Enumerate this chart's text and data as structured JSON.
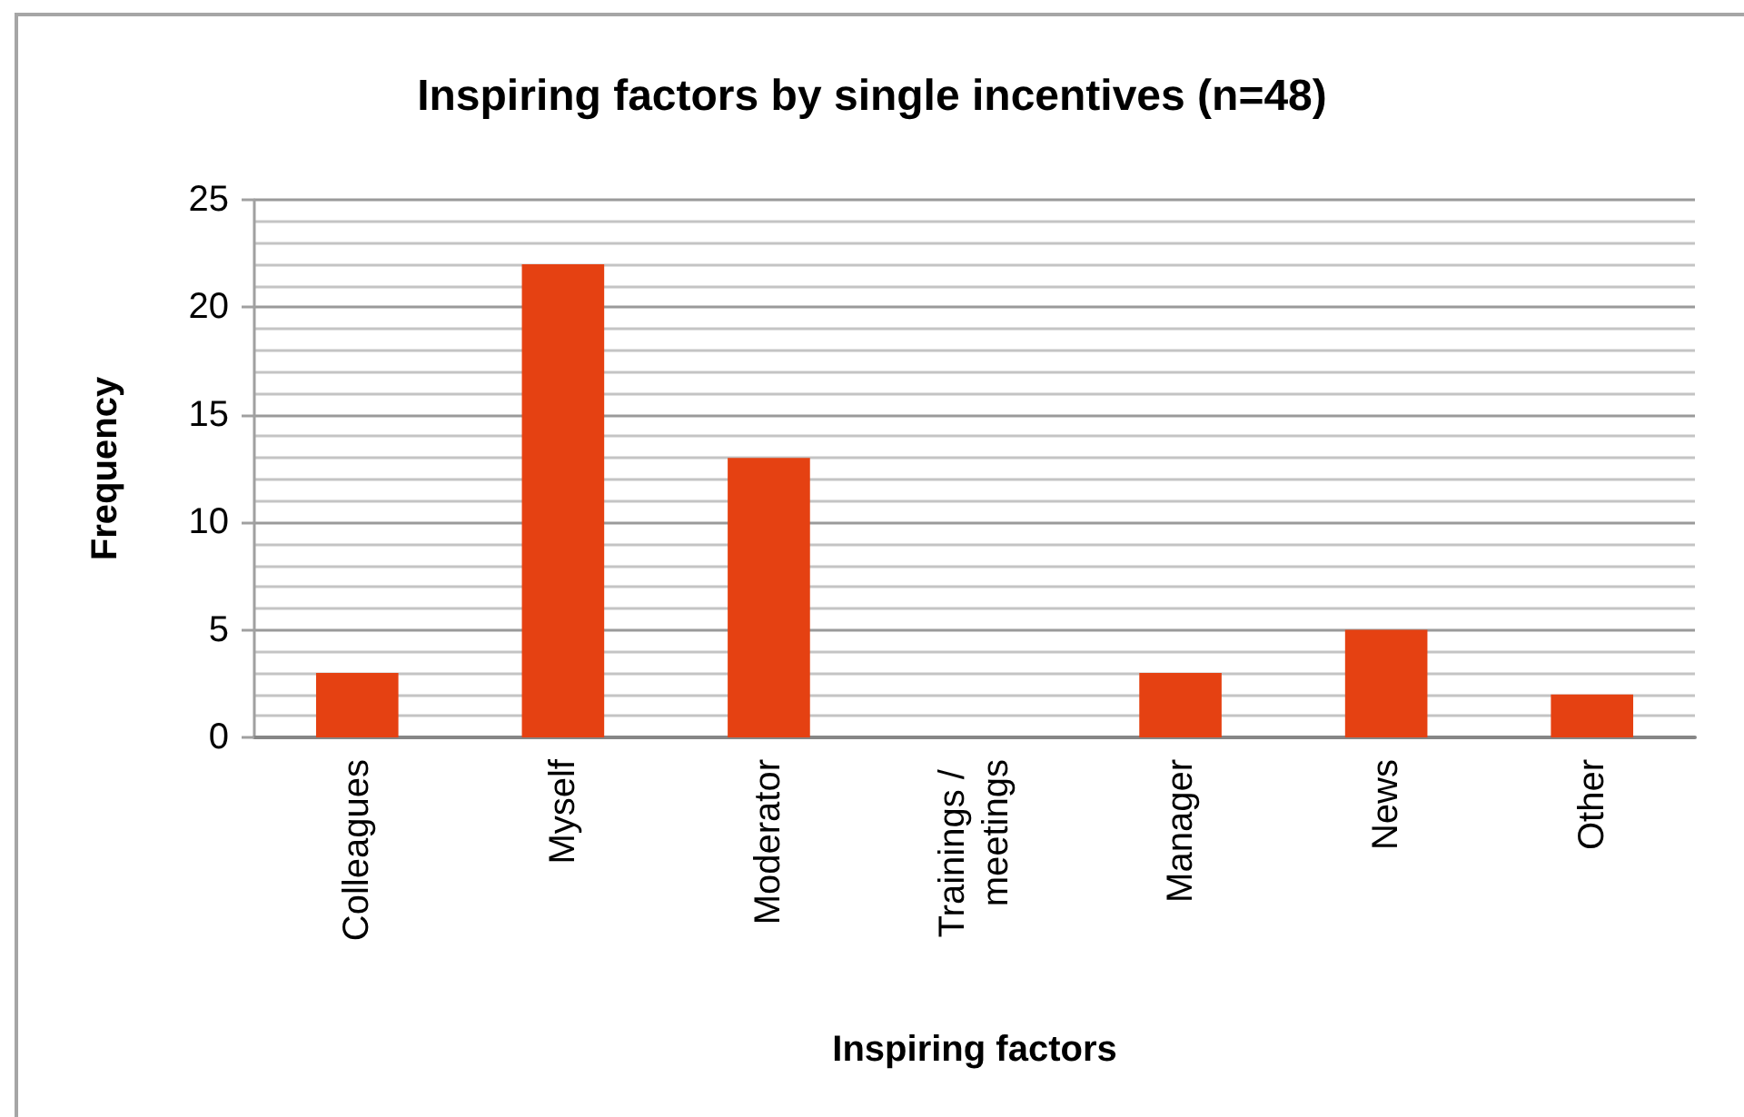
{
  "chart_data": {
    "type": "bar",
    "title": "Inspiring factors by single incentives (n=48)",
    "xlabel": "Inspiring factors",
    "ylabel": "Frequency",
    "categories": [
      "Colleagues",
      "Myself",
      "Moderator",
      "Trainings / meetings",
      "Manager",
      "News",
      "Other"
    ],
    "values": [
      3,
      22,
      13,
      0,
      3,
      5,
      2
    ],
    "color": "#e54112",
    "ylim": [
      0,
      25
    ],
    "yticks": [
      0,
      5,
      10,
      15,
      20,
      25
    ],
    "grid": "y"
  }
}
